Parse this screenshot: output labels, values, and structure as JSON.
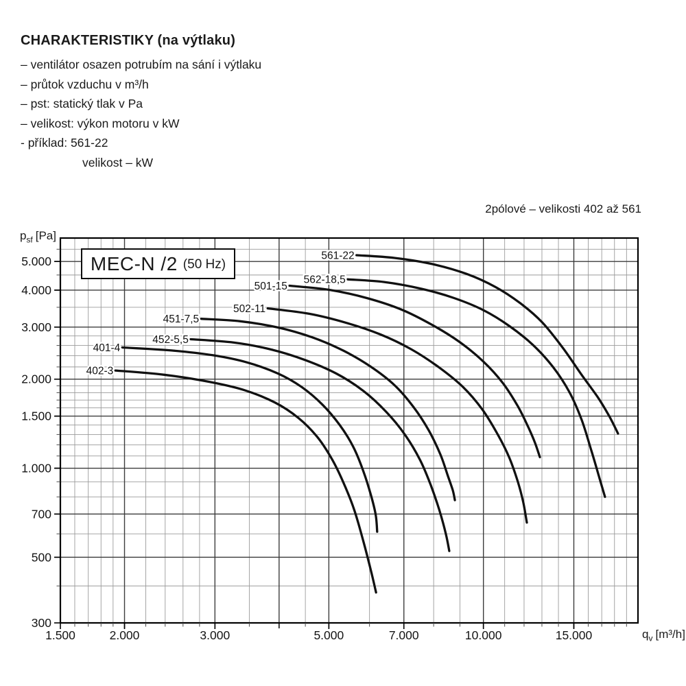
{
  "header": {
    "title": "CHARAKTERISTIKY (na výtlaku)",
    "lines": [
      "– ventilátor osazen potrubím na sání i výtlaku",
      "– průtok vzduchu v m³/h",
      "– pst: statický tlak v Pa",
      "– velikost: výkon motoru v kW",
      "- příklad: 561-22"
    ],
    "indent_line": "velikost – kW"
  },
  "caption": "2pólové – velikosti 402 až 561",
  "colors": {
    "text": "#1a1a1a",
    "grid_minor": "#9a9a9a",
    "grid_major": "#3c3c3c",
    "frame": "#000000",
    "curve": "#111111"
  },
  "chart_data": {
    "type": "line",
    "title_box": {
      "main": "MEC-N /2",
      "suffix": "(50 Hz)"
    },
    "x_axis": {
      "sym": "q",
      "sub": "v",
      "unit": "[m³/h]",
      "scale": "log",
      "min": 1500,
      "max": 20000,
      "ticks": [
        {
          "v": 1500,
          "label": "1.500"
        },
        {
          "v": 2000,
          "label": "2.000"
        },
        {
          "v": 3000,
          "label": "3.000"
        },
        {
          "v": 5000,
          "label": "5.000"
        },
        {
          "v": 7000,
          "label": "7.000"
        },
        {
          "v": 10000,
          "label": "10.000"
        },
        {
          "v": 15000,
          "label": "15.000"
        }
      ],
      "major": [
        2000,
        3000,
        4000,
        5000,
        7000,
        10000,
        15000
      ],
      "minor": [
        1600,
        1700,
        1800,
        1900,
        2200,
        2400,
        2600,
        2800,
        3500,
        4500,
        6000,
        8000,
        9000,
        11000,
        12000,
        13000,
        14000,
        16000,
        17000,
        18000,
        19000
      ]
    },
    "y_axis": {
      "sym": "p",
      "sub": "sf",
      "unit": "[Pa]",
      "scale": "log",
      "min": 300,
      "max": 6000,
      "ticks": [
        {
          "v": 300,
          "label": "300"
        },
        {
          "v": 500,
          "label": "500"
        },
        {
          "v": 700,
          "label": "700"
        },
        {
          "v": 1000,
          "label": "1.000"
        },
        {
          "v": 1500,
          "label": "1.500"
        },
        {
          "v": 2000,
          "label": "2.000"
        },
        {
          "v": 3000,
          "label": "3.000"
        },
        {
          "v": 4000,
          "label": "4.000"
        },
        {
          "v": 5000,
          "label": "5.000"
        }
      ],
      "major": [
        500,
        700,
        1000,
        1500,
        2000,
        3000,
        4000,
        5000
      ],
      "minor": [
        400,
        600,
        800,
        900,
        1100,
        1200,
        1300,
        1400,
        1600,
        1700,
        1800,
        1900,
        2200,
        2400,
        2600,
        2800,
        3500,
        4500,
        5500
      ]
    },
    "series": [
      {
        "name": "402-3",
        "points": [
          [
            1920,
            2140
          ],
          [
            2390,
            2070
          ],
          [
            2920,
            1960
          ],
          [
            3410,
            1840
          ],
          [
            3920,
            1670
          ],
          [
            4360,
            1480
          ],
          [
            4740,
            1280
          ],
          [
            5060,
            1080
          ],
          [
            5330,
            900
          ],
          [
            5600,
            725
          ],
          [
            5840,
            565
          ],
          [
            6040,
            450
          ],
          [
            6180,
            380
          ]
        ]
      },
      {
        "name": "401-4",
        "points": [
          [
            1980,
            2560
          ],
          [
            2470,
            2500
          ],
          [
            2970,
            2410
          ],
          [
            3460,
            2280
          ],
          [
            3980,
            2090
          ],
          [
            4430,
            1880
          ],
          [
            4860,
            1640
          ],
          [
            5250,
            1400
          ],
          [
            5580,
            1180
          ],
          [
            5840,
            975
          ],
          [
            6040,
            810
          ],
          [
            6170,
            695
          ],
          [
            6210,
            610
          ]
        ]
      },
      {
        "name": "452-5,5",
        "points": [
          [
            2690,
            2730
          ],
          [
            3260,
            2660
          ],
          [
            3860,
            2520
          ],
          [
            4500,
            2320
          ],
          [
            5170,
            2090
          ],
          [
            5840,
            1825
          ],
          [
            6470,
            1550
          ],
          [
            7030,
            1300
          ],
          [
            7520,
            1070
          ],
          [
            7900,
            875
          ],
          [
            8200,
            725
          ],
          [
            8450,
            600
          ],
          [
            8580,
            525
          ]
        ]
      },
      {
        "name": "451-7,5",
        "points": [
          [
            2820,
            3200
          ],
          [
            3360,
            3140
          ],
          [
            3980,
            2990
          ],
          [
            4640,
            2770
          ],
          [
            5330,
            2500
          ],
          [
            6020,
            2210
          ],
          [
            6710,
            1910
          ],
          [
            7310,
            1610
          ],
          [
            7830,
            1340
          ],
          [
            8250,
            1110
          ],
          [
            8530,
            940
          ],
          [
            8720,
            840
          ],
          [
            8800,
            780
          ]
        ]
      },
      {
        "name": "502-11",
        "points": [
          [
            3800,
            3470
          ],
          [
            4570,
            3330
          ],
          [
            5410,
            3100
          ],
          [
            6310,
            2830
          ],
          [
            7250,
            2520
          ],
          [
            8200,
            2190
          ],
          [
            9130,
            1880
          ],
          [
            9950,
            1580
          ],
          [
            10640,
            1310
          ],
          [
            11220,
            1090
          ],
          [
            11670,
            900
          ],
          [
            11960,
            765
          ],
          [
            12150,
            655
          ]
        ]
      },
      {
        "name": "501-15",
        "points": [
          [
            4190,
            4140
          ],
          [
            5010,
            4010
          ],
          [
            5930,
            3760
          ],
          [
            6920,
            3440
          ],
          [
            7950,
            3050
          ],
          [
            8990,
            2670
          ],
          [
            10010,
            2290
          ],
          [
            10910,
            1940
          ],
          [
            11670,
            1620
          ],
          [
            12220,
            1380
          ],
          [
            12600,
            1220
          ],
          [
            12880,
            1090
          ]
        ]
      },
      {
        "name": "562-18,5",
        "points": [
          [
            5440,
            4350
          ],
          [
            6410,
            4260
          ],
          [
            7590,
            4040
          ],
          [
            8770,
            3760
          ],
          [
            10010,
            3420
          ],
          [
            11250,
            3020
          ],
          [
            12490,
            2610
          ],
          [
            13660,
            2200
          ],
          [
            14700,
            1810
          ],
          [
            15530,
            1460
          ],
          [
            16220,
            1150
          ],
          [
            16830,
            925
          ],
          [
            17250,
            800
          ]
        ]
      },
      {
        "name": "561-22",
        "points": [
          [
            5660,
            5250
          ],
          [
            6710,
            5140
          ],
          [
            7950,
            4900
          ],
          [
            9270,
            4540
          ],
          [
            10550,
            4100
          ],
          [
            11780,
            3620
          ],
          [
            13000,
            3120
          ],
          [
            14260,
            2560
          ],
          [
            15530,
            2070
          ],
          [
            16730,
            1730
          ],
          [
            17580,
            1500
          ],
          [
            18290,
            1310
          ]
        ]
      }
    ]
  }
}
